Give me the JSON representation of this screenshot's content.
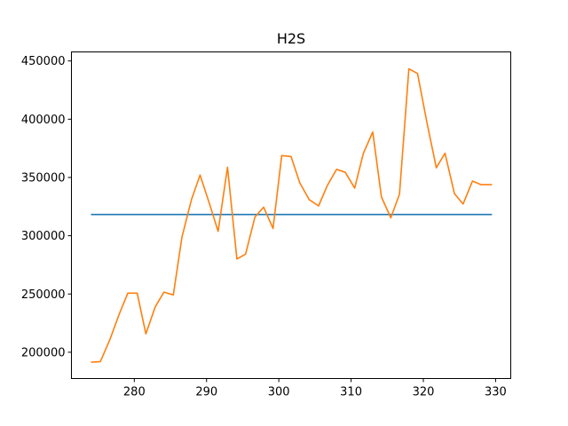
{
  "chart_data": {
    "type": "line",
    "title": "H2S",
    "xlabel": "",
    "ylabel": "",
    "xlim": [
      271.3,
      332.1
    ],
    "ylim": [
      177450,
      457750
    ],
    "grid": false,
    "x_ticks": [
      280,
      290,
      300,
      310,
      320,
      330
    ],
    "x_tick_labels": [
      "280",
      "290",
      "300",
      "310",
      "320",
      "330"
    ],
    "y_ticks": [
      200000,
      250000,
      300000,
      350000,
      400000,
      450000
    ],
    "y_tick_labels": [
      "200000",
      "250000",
      "300000",
      "350000",
      "400000",
      "450000"
    ],
    "series": [
      {
        "color": "#1f77b4",
        "x": [
          274.1,
          329.4
        ],
        "y": [
          318200,
          318200
        ]
      },
      {
        "color": "#ff7f0e",
        "x": [
          274.1,
          275.3,
          276.6,
          277.9,
          279.1,
          280.4,
          281.6,
          282.9,
          284.1,
          285.4,
          286.6,
          287.9,
          289.1,
          290.4,
          291.6,
          292.9,
          294.2,
          295.4,
          296.7,
          297.9,
          299.2,
          300.4,
          301.7,
          302.9,
          304.2,
          305.5,
          306.7,
          308.0,
          309.2,
          310.5,
          311.7,
          313.0,
          314.2,
          315.5,
          316.7,
          318.0,
          319.2,
          320.5,
          321.8,
          323.0,
          324.3,
          325.5,
          326.8,
          328.0,
          329.4
        ],
        "y": [
          191500,
          192000,
          210500,
          232500,
          250700,
          250700,
          215800,
          239000,
          251600,
          249200,
          299000,
          330800,
          352100,
          327500,
          303800,
          358800,
          280000,
          284200,
          316100,
          324500,
          306200,
          368800,
          367900,
          345400,
          331000,
          325600,
          342900,
          357000,
          354400,
          340900,
          370700,
          389000,
          333300,
          315400,
          335600,
          443200,
          439200,
          397100,
          358300,
          370800,
          336200,
          327200,
          346900,
          343800,
          343800
        ]
      }
    ]
  }
}
